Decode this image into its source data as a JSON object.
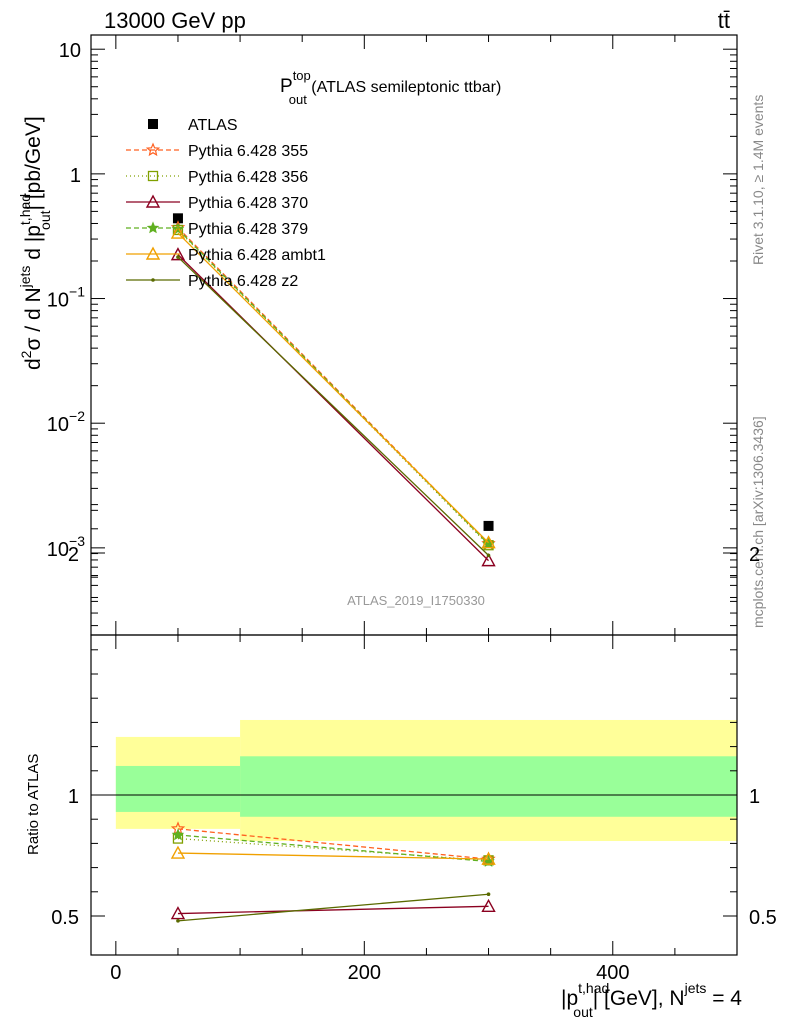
{
  "header": {
    "left": "13000 GeV pp",
    "right": "tt̄"
  },
  "side_labels": {
    "rivet": "Rivet 3.1.10, ≥ 1.4M events",
    "mcplots": "mcplots.cern.ch [arXiv:1306.3436]"
  },
  "plot_title": {
    "main": "P",
    "sup": "top",
    "sub": "out",
    "suffix": " (ATLAS semileptonic ttbar)"
  },
  "analysis_id": "ATLAS_2019_I1750330",
  "x_axis_label": {
    "pre": "|p",
    "sup": "t,had",
    "sub": "out",
    "post": "| [GeV], N",
    "sup2": "jets",
    "end": " = 4"
  },
  "y_axis_label": {
    "d1": "d",
    "sup1": "2",
    "s": "σ / d N",
    "sup2": "jets",
    "d2": " d |p",
    "sup3": "t,had",
    "sub3": "out",
    "end": "| [pb/GeV]"
  },
  "ratio_axis_label": "Ratio to ATLAS",
  "colors": {
    "atlas": "#000000",
    "p355": "#ff6020",
    "p356": "#80a000",
    "p370": "#8b0020",
    "p379": "#60b020",
    "ambt1": "#f0a000",
    "z2": "#5a6a00",
    "band_inner": "#99ff99",
    "band_outer": "#ffff99"
  },
  "chart_data": [
    {
      "type": "line",
      "panel": "main",
      "ylog": true,
      "xlim": [
        -20,
        500
      ],
      "ylim": [
        0.0002,
        13
      ],
      "yticks": [
        {
          "v": 10,
          "base": "10",
          "exp": ""
        },
        {
          "v": 1,
          "base": "1",
          "exp": ""
        },
        {
          "v": 0.1,
          "base": "10",
          "exp": "−1"
        },
        {
          "v": 0.01,
          "base": "10",
          "exp": "−2"
        },
        {
          "v": 0.001,
          "base": "10",
          "exp": "−3"
        }
      ],
      "legend_position": "top-left",
      "series": [
        {
          "name": "ATLAS",
          "key": "atlas",
          "marker": "square",
          "dash": "",
          "x": [
            50,
            300
          ],
          "y": [
            0.44,
            0.0015
          ]
        },
        {
          "name": "Pythia 6.428 355",
          "key": "p355",
          "marker": "star",
          "dash": "5,3",
          "x": [
            50,
            300
          ],
          "y": [
            0.37,
            0.00108
          ]
        },
        {
          "name": "Pythia 6.428 356",
          "key": "p356",
          "marker": "square-open",
          "dash": "1,3",
          "x": [
            50,
            300
          ],
          "y": [
            0.355,
            0.00105
          ]
        },
        {
          "name": "Pythia 6.428 370",
          "key": "p370",
          "marker": "triangle-open",
          "dash": "",
          "x": [
            50,
            300
          ],
          "y": [
            0.225,
            0.00079
          ]
        },
        {
          "name": "Pythia 6.428 379",
          "key": "p379",
          "marker": "star-small",
          "dash": "5,3",
          "x": [
            50,
            300
          ],
          "y": [
            0.36,
            0.00107
          ]
        },
        {
          "name": "Pythia 6.428 ambt1",
          "key": "ambt1",
          "marker": "triangle-open",
          "dash": "",
          "x": [
            50,
            300
          ],
          "y": [
            0.335,
            0.0011
          ]
        },
        {
          "name": "Pythia 6.428 z2",
          "key": "z2",
          "marker": "dot",
          "dash": "",
          "x": [
            50,
            300
          ],
          "y": [
            0.215,
            0.00087
          ]
        }
      ]
    },
    {
      "type": "line",
      "panel": "ratio",
      "ylog": false,
      "xlim": [
        -20,
        500
      ],
      "ylim": [
        0.5,
        2.25
      ],
      "yticks": [
        {
          "v": 2,
          "label": "2"
        },
        {
          "v": 1,
          "label": "1"
        },
        {
          "v": 0.5,
          "label": "0.5"
        }
      ],
      "xticks": [
        {
          "v": 0,
          "label": "0"
        },
        {
          "v": 200,
          "label": "200"
        },
        {
          "v": 400,
          "label": "400"
        }
      ],
      "bands": [
        {
          "x0": 0,
          "x1": 100,
          "inner": [
            0.93,
            1.12
          ],
          "outer": [
            0.86,
            1.24
          ]
        },
        {
          "x0": 100,
          "x1": 500,
          "inner": [
            0.91,
            1.16
          ],
          "outer": [
            0.81,
            1.31
          ]
        }
      ],
      "series": [
        {
          "key": "p355",
          "marker": "star",
          "dash": "5,3",
          "x": [
            50,
            300
          ],
          "y": [
            0.86,
            0.735
          ]
        },
        {
          "key": "p356",
          "marker": "square-open",
          "dash": "1,3",
          "x": [
            50,
            300
          ],
          "y": [
            0.82,
            0.73
          ]
        },
        {
          "key": "p370",
          "marker": "triangle-open",
          "dash": "",
          "x": [
            50,
            300
          ],
          "y": [
            0.51,
            0.54
          ]
        },
        {
          "key": "p379",
          "marker": "star-small",
          "dash": "5,3",
          "x": [
            50,
            300
          ],
          "y": [
            0.835,
            0.725
          ]
        },
        {
          "key": "ambt1",
          "marker": "triangle-open",
          "dash": "",
          "x": [
            50,
            300
          ],
          "y": [
            0.76,
            0.735
          ]
        },
        {
          "key": "z2",
          "marker": "dot",
          "dash": "",
          "x": [
            50,
            300
          ],
          "y": [
            0.48,
            0.59
          ]
        }
      ]
    }
  ]
}
